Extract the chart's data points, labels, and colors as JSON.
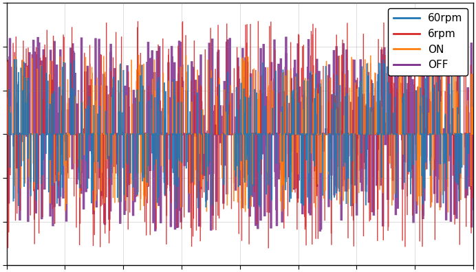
{
  "title": "",
  "xlabel": "",
  "ylabel": "",
  "legend_labels": [
    "60rpm",
    "6rpm",
    "ON",
    "OFF"
  ],
  "colors": [
    "#1f77b4",
    "#d62728",
    "#ff7f0e",
    "#7b2d8b"
  ],
  "n_points": 2000,
  "xlim": [
    0,
    1
  ],
  "ylim": [
    -1.5,
    1.5
  ],
  "background": "#ffffff",
  "figsize": [
    6.92,
    3.96
  ],
  "dpi": 100,
  "seed": 42,
  "line_width": 0.8,
  "alpha_purple": 0.85,
  "alpha_others": 0.9
}
